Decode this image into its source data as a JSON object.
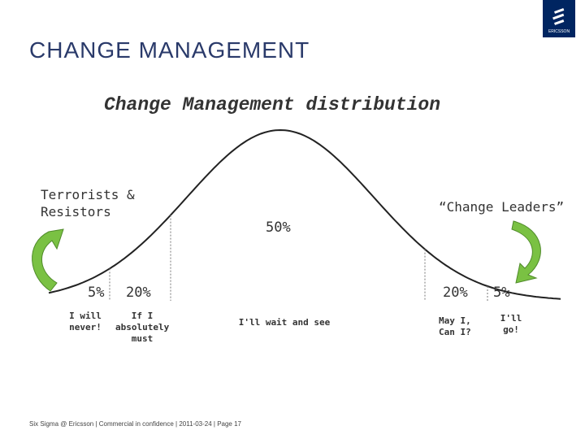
{
  "header": {
    "title": "CHANGE MANAGEMENT",
    "logo": "ERICSSON"
  },
  "subtitle": "Change Management distribution",
  "left_label": "Terrorists & Resistors",
  "right_label": "“Change Leaders”",
  "segments": [
    {
      "percent": "5%",
      "label": "I will never!"
    },
    {
      "percent": "20%",
      "label": "If I absolutely must"
    },
    {
      "percent": "50%",
      "label": "I'll wait and see"
    },
    {
      "percent": "20%",
      "label": "May I, Can I?"
    },
    {
      "percent": "5%",
      "label": "I'll go!"
    }
  ],
  "footer": "Six Sigma @ Ericsson | Commercial in confidence | 2011-03-24 | Page 17"
}
